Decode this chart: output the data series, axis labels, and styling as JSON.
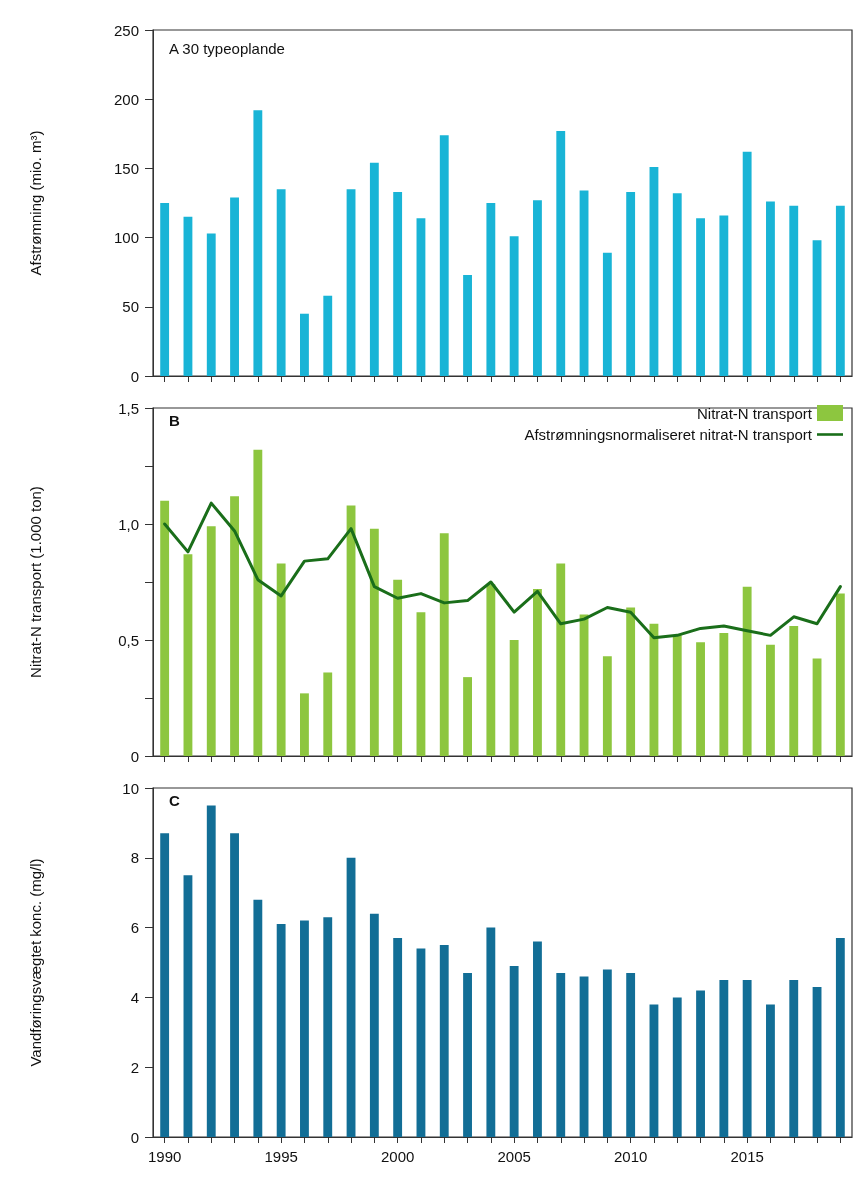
{
  "chart_data": [
    {
      "type": "bar",
      "title": "A 30 typeoplande",
      "ylabel": "Afstrømning (mio. m³)",
      "categories": [
        "1990",
        null,
        null,
        null,
        null,
        "1995",
        null,
        null,
        null,
        null,
        "2000",
        null,
        null,
        null,
        null,
        "2005",
        null,
        null,
        null,
        null,
        "2010",
        null,
        null,
        null,
        null,
        "2015",
        null,
        null,
        null,
        null
      ],
      "series": [
        {
          "color": "#19b4d6",
          "values": [
            125,
            115,
            103,
            129,
            192,
            135,
            45,
            58,
            135,
            154,
            133,
            114,
            174,
            73,
            125,
            101,
            127,
            177,
            134,
            89,
            133,
            151,
            132,
            114,
            116,
            162,
            126,
            123,
            98,
            123
          ]
        }
      ],
      "ylim": [
        0,
        250
      ],
      "yticks": [
        0,
        50,
        100,
        150,
        200,
        250
      ],
      "tick_labels": "y",
      "legend": false
    },
    {
      "type": "bar",
      "title": "B",
      "ylabel": "Nitrat-N transport (1.000 ton)",
      "categories": [
        "1990",
        null,
        null,
        null,
        null,
        "1995",
        null,
        null,
        null,
        null,
        "2000",
        null,
        null,
        null,
        null,
        "2005",
        null,
        null,
        null,
        null,
        "2010",
        null,
        null,
        null,
        null,
        "2015",
        null,
        null,
        null,
        null
      ],
      "series": [
        {
          "name": "Nitrat-N transport",
          "color": "#8dc63f",
          "values": [
            1.1,
            0.87,
            0.99,
            1.12,
            1.32,
            0.83,
            0.27,
            0.36,
            1.08,
            0.98,
            0.76,
            0.62,
            0.96,
            0.34,
            0.74,
            0.5,
            0.72,
            0.83,
            0.61,
            0.43,
            0.64,
            0.57,
            0.52,
            0.49,
            0.53,
            0.73,
            0.48,
            0.56,
            0.42,
            0.7
          ]
        },
        {
          "name": "Afstrømningsnormaliseret nitrat-N transport",
          "type": "line",
          "color": "#1a6e1a",
          "marker": "none",
          "line_style": "solid",
          "values": [
            1.0,
            0.88,
            1.09,
            0.97,
            0.76,
            0.69,
            0.84,
            0.85,
            0.98,
            0.73,
            0.68,
            0.7,
            0.66,
            0.67,
            0.75,
            0.62,
            0.71,
            0.57,
            0.59,
            0.64,
            0.62,
            0.51,
            0.52,
            0.55,
            0.56,
            0.54,
            0.52,
            0.6,
            0.57,
            0.73
          ]
        }
      ],
      "ylim": [
        0,
        1.5
      ],
      "yticks": [
        0,
        {
          "value": 0.25,
          "label": null
        },
        {
          "value": 0.5,
          "label": "0,5"
        },
        {
          "value": 0.75,
          "label": null
        },
        {
          "value": 1.0,
          "label": "1,0"
        },
        {
          "value": 1.25,
          "label": null
        },
        {
          "value": 1.5,
          "label": "1,5"
        }
      ],
      "tick_labels": "y",
      "legend": "top right"
    },
    {
      "type": "bar",
      "title": "C",
      "ylabel": "Vandføringsvægtet konc. (mg/l)",
      "categories": [
        "1990",
        null,
        null,
        null,
        null,
        "1995",
        null,
        null,
        null,
        null,
        "2000",
        null,
        null,
        null,
        null,
        "2005",
        null,
        null,
        null,
        null,
        "2010",
        null,
        null,
        null,
        null,
        "2015",
        null,
        null,
        null,
        null
      ],
      "series": [
        {
          "color": "#126e96",
          "values": [
            8.7,
            7.5,
            9.5,
            8.7,
            6.8,
            6.1,
            6.2,
            6.3,
            8.0,
            6.4,
            5.7,
            5.4,
            5.5,
            4.7,
            6.0,
            4.9,
            5.6,
            4.7,
            4.6,
            4.8,
            4.7,
            3.8,
            4.0,
            4.2,
            4.5,
            4.5,
            3.8,
            4.5,
            4.3,
            5.7
          ]
        }
      ],
      "ylim": [
        0,
        10
      ],
      "yticks": [
        0,
        2,
        4,
        6,
        8,
        10
      ],
      "legend": false
    }
  ]
}
